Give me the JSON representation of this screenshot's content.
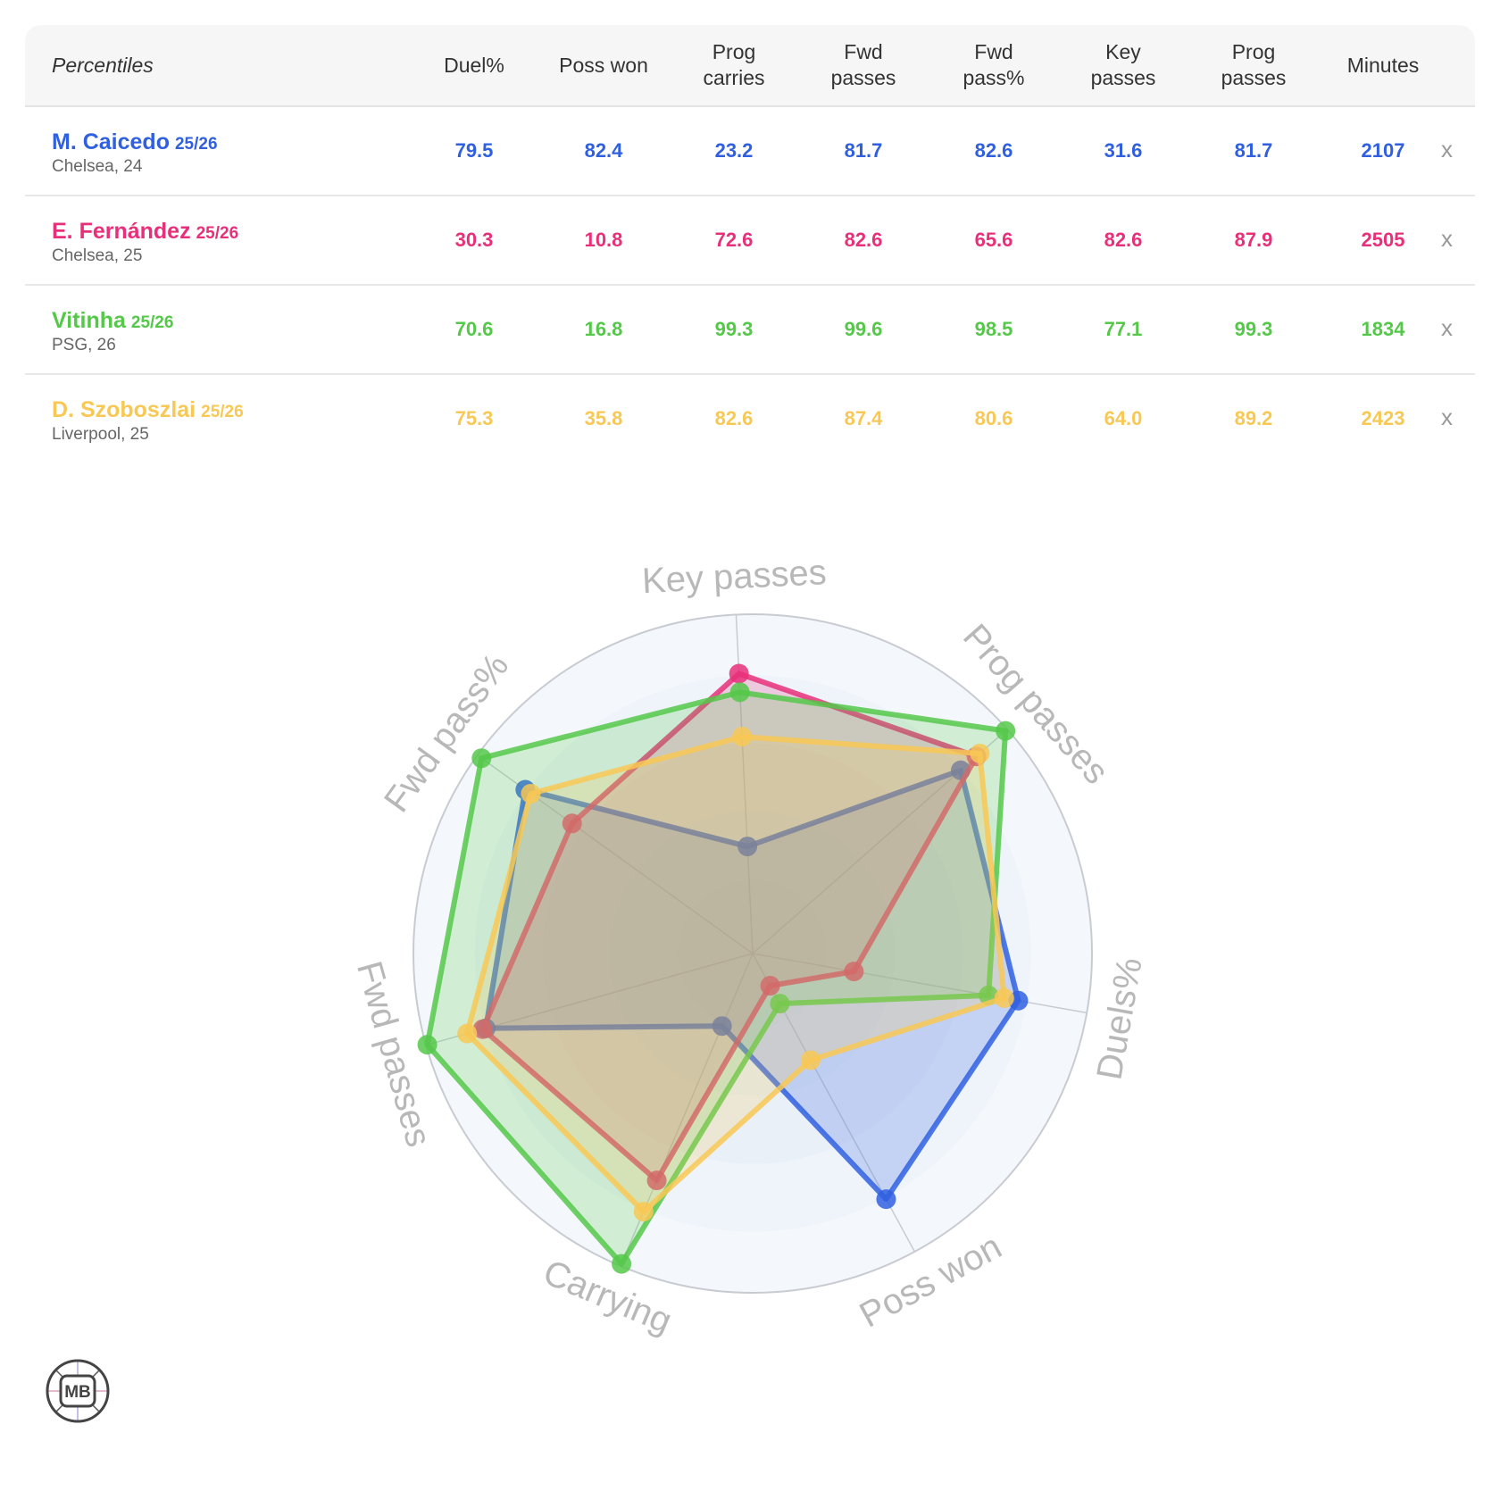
{
  "table": {
    "header_label": "Percentiles",
    "columns": [
      {
        "key": "duel_pct",
        "label_line1": "Duel%",
        "label_line2": ""
      },
      {
        "key": "poss_won",
        "label_line1": "Poss won",
        "label_line2": ""
      },
      {
        "key": "prog_carries",
        "label_line1": "Prog",
        "label_line2": "carries"
      },
      {
        "key": "fwd_passes",
        "label_line1": "Fwd",
        "label_line2": "passes"
      },
      {
        "key": "fwd_pass_pct",
        "label_line1": "Fwd",
        "label_line2": "pass%"
      },
      {
        "key": "key_passes",
        "label_line1": "Key",
        "label_line2": "passes"
      },
      {
        "key": "prog_passes",
        "label_line1": "Prog",
        "label_line2": "passes"
      },
      {
        "key": "minutes",
        "label_line1": "Minutes",
        "label_line2": ""
      }
    ],
    "remove_label": "x",
    "players": [
      {
        "name": "M. Caicedo",
        "season": "25/26",
        "club_age": "Chelsea, 24",
        "color": "#3060e0",
        "values": [
          "79.5",
          "82.4",
          "23.2",
          "81.7",
          "82.6",
          "31.6",
          "81.7",
          "2107"
        ]
      },
      {
        "name": "E. Fernández",
        "season": "25/26",
        "club_age": "Chelsea, 25",
        "color": "#e8307a",
        "values": [
          "30.3",
          "10.8",
          "72.6",
          "82.6",
          "65.6",
          "82.6",
          "87.9",
          "2505"
        ]
      },
      {
        "name": "Vitinha",
        "season": "25/26",
        "club_age": "PSG, 26",
        "color": "#55c84a",
        "values": [
          "70.6",
          "16.8",
          "99.3",
          "99.6",
          "98.5",
          "77.1",
          "99.3",
          "1834"
        ]
      },
      {
        "name": "D. Szoboszlai",
        "season": "25/26",
        "club_age": "Liverpool, 25",
        "color": "#f8c855",
        "values": [
          "75.3",
          "35.8",
          "82.6",
          "87.4",
          "80.6",
          "64.0",
          "89.2",
          "2423"
        ]
      }
    ]
  },
  "chart_data": {
    "type": "radar",
    "title": "",
    "axes": [
      "Key passes",
      "Prog passes",
      "Duels%",
      "Poss won",
      "Carrying",
      "Fwd passes",
      "Fwd pass%"
    ],
    "range": [
      0,
      100
    ],
    "grid": true,
    "series": [
      {
        "name": "M. Caicedo 25/26",
        "color": "#3060e0",
        "values": [
          31.6,
          81.7,
          79.5,
          82.4,
          23.2,
          81.7,
          82.6
        ]
      },
      {
        "name": "E. Fernández 25/26",
        "color": "#e8307a",
        "values": [
          82.6,
          87.9,
          30.3,
          10.8,
          72.6,
          82.6,
          65.6
        ]
      },
      {
        "name": "Vitinha 25/26",
        "color": "#55c84a",
        "values": [
          77.1,
          99.3,
          70.6,
          16.8,
          99.3,
          99.6,
          98.5
        ]
      },
      {
        "name": "D. Szoboszlai 25/26",
        "color": "#f8c855",
        "values": [
          64.0,
          89.2,
          75.3,
          35.8,
          82.6,
          87.4,
          80.6
        ]
      }
    ]
  },
  "logo": {
    "text": "MB"
  }
}
